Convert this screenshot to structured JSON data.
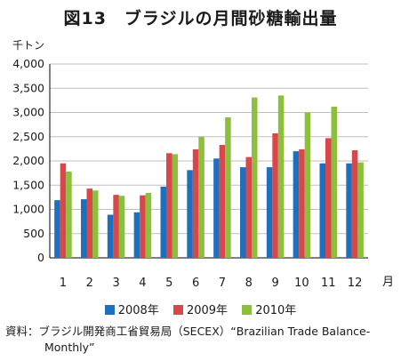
{
  "title": "図13　ブラジルの月間砂糖輸出量",
  "source": {
    "line1": "資料：ブラジル開発商工省貿易局（SECEX）“Brazilian Trade Balance-",
    "line2": "Monthly”"
  },
  "chart_data": {
    "type": "bar",
    "title": "図13　ブラジルの月間砂糖輸出量",
    "ylabel": "千トン",
    "xlabel": "月",
    "categories": [
      "1",
      "2",
      "3",
      "4",
      "5",
      "6",
      "7",
      "8",
      "9",
      "10",
      "11",
      "12"
    ],
    "yticks": [
      "0",
      "500",
      "1,000",
      "1,500",
      "2,000",
      "2,500",
      "3,000",
      "3,500",
      "4,000"
    ],
    "ylim": [
      0,
      4000
    ],
    "grid": true,
    "legend_position": "bottom",
    "series": [
      {
        "name": "2008年",
        "color": "#1f6fbf",
        "values": [
          1190,
          1210,
          890,
          940,
          1470,
          1810,
          2050,
          1870,
          1870,
          2200,
          1950,
          1950
        ]
      },
      {
        "name": "2009年",
        "color": "#d9474a",
        "values": [
          1950,
          1430,
          1300,
          1290,
          2160,
          2240,
          2330,
          2080,
          2570,
          2240,
          2470,
          2220
        ]
      },
      {
        "name": "2010年",
        "color": "#8bbf3c",
        "values": [
          1780,
          1390,
          1280,
          1340,
          2140,
          2500,
          2900,
          3310,
          3350,
          3000,
          3120,
          1970
        ]
      }
    ]
  }
}
